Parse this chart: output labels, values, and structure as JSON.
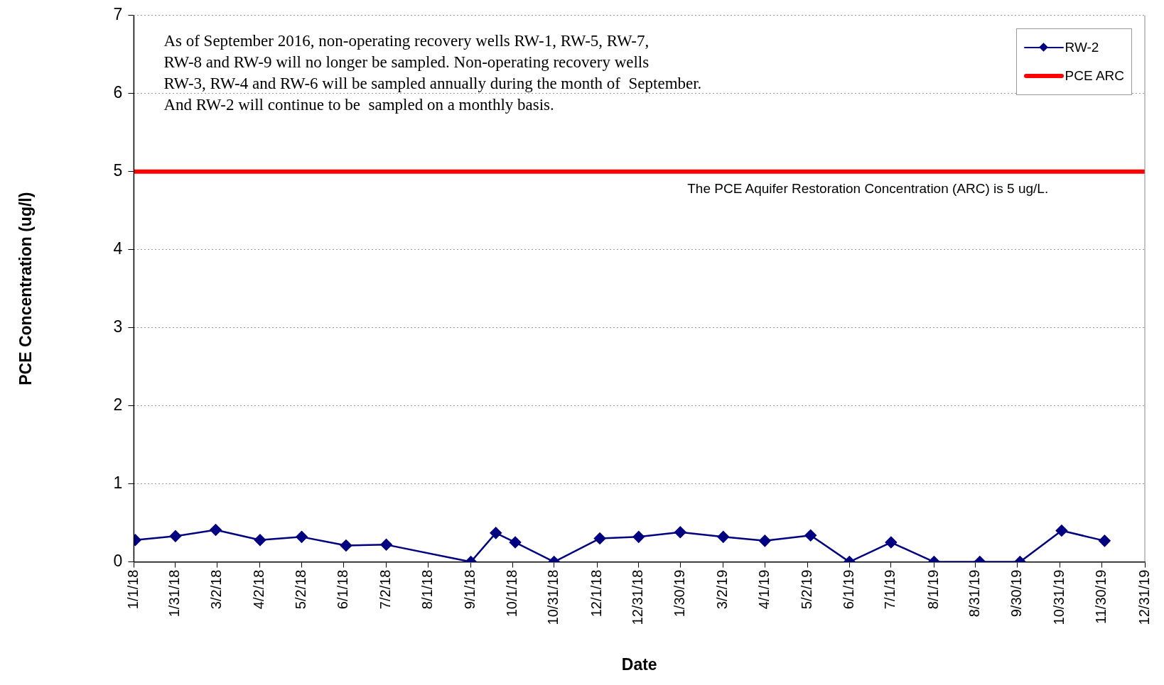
{
  "chart_data": {
    "type": "line",
    "xlabel": "Date",
    "ylabel": "PCE Concentration (ug/l)",
    "xlim": [
      "2018-01-01",
      "2019-12-31"
    ],
    "xticks": [
      {
        "value": "2018-01-01",
        "label": "1/1/18"
      },
      {
        "value": "2018-01-31",
        "label": "1/31/18"
      },
      {
        "value": "2018-03-02",
        "label": "3/2/18"
      },
      {
        "value": "2018-04-02",
        "label": "4/2/18"
      },
      {
        "value": "2018-05-02",
        "label": "5/2/18"
      },
      {
        "value": "2018-06-01",
        "label": "6/1/18"
      },
      {
        "value": "2018-07-02",
        "label": "7/2/18"
      },
      {
        "value": "2018-08-01",
        "label": "8/1/18"
      },
      {
        "value": "2018-09-01",
        "label": "9/1/18"
      },
      {
        "value": "2018-10-01",
        "label": "10/1/18"
      },
      {
        "value": "2018-10-31",
        "label": "10/31/18"
      },
      {
        "value": "2018-12-01",
        "label": "12/1/18"
      },
      {
        "value": "2018-12-31",
        "label": "12/31/18"
      },
      {
        "value": "2019-01-30",
        "label": "1/30/19"
      },
      {
        "value": "2019-03-02",
        "label": "3/2/19"
      },
      {
        "value": "2019-04-01",
        "label": "4/1/19"
      },
      {
        "value": "2019-05-02",
        "label": "5/2/19"
      },
      {
        "value": "2019-06-01",
        "label": "6/1/19"
      },
      {
        "value": "2019-07-01",
        "label": "7/1/19"
      },
      {
        "value": "2019-08-01",
        "label": "8/1/19"
      },
      {
        "value": "2019-08-31",
        "label": "8/31/19"
      },
      {
        "value": "2019-09-30",
        "label": "9/30/19"
      },
      {
        "value": "2019-10-31",
        "label": "10/31/19"
      },
      {
        "value": "2019-11-30",
        "label": "11/30/19"
      },
      {
        "value": "2019-12-31",
        "label": "12/31/19"
      }
    ],
    "ylim": [
      0,
      7
    ],
    "yticks": [
      0,
      1,
      2,
      3,
      4,
      5,
      6,
      7
    ],
    "grid": "y",
    "legend": "top right",
    "series": [
      {
        "name": "RW-2",
        "color": "#000080",
        "marker": "diamond",
        "x": [
          "2018-01-02",
          "2018-01-31",
          "2018-03-01",
          "2018-04-02",
          "2018-05-02",
          "2018-06-03",
          "2018-07-02",
          "2018-09-01",
          "2018-09-19",
          "2018-10-03",
          "2018-10-31",
          "2018-12-03",
          "2018-12-31",
          "2019-01-30",
          "2019-03-02",
          "2019-04-01",
          "2019-05-04",
          "2019-06-01",
          "2019-07-01",
          "2019-08-01",
          "2019-09-03",
          "2019-10-02",
          "2019-11-01",
          "2019-12-02"
        ],
        "values": [
          0.28,
          0.33,
          0.41,
          0.28,
          0.32,
          0.21,
          0.22,
          0,
          0.37,
          0.25,
          0,
          0.3,
          0.32,
          0.38,
          0.32,
          0.27,
          0.34,
          0,
          0.25,
          0,
          0,
          0,
          0.4,
          0.27
        ]
      },
      {
        "name": "PCE ARC",
        "color": "#ff0000",
        "marker": "none",
        "x": [
          "2018-01-01",
          "2019-12-31"
        ],
        "values": [
          5,
          5
        ]
      }
    ],
    "annotations": [
      "As of September 2016, non-operating recovery wells RW-1, RW-5, RW-7,\nRW-8 and RW-9 will no longer be sampled. Non-operating recovery wells\nRW-3, RW-4 and RW-6 will be sampled annually during the month of  September.\nAnd RW-2 will continue to be  sampled on a monthly basis.",
      "The PCE Aquifer Restoration Concentration (ARC) is 5 ug/L."
    ]
  }
}
